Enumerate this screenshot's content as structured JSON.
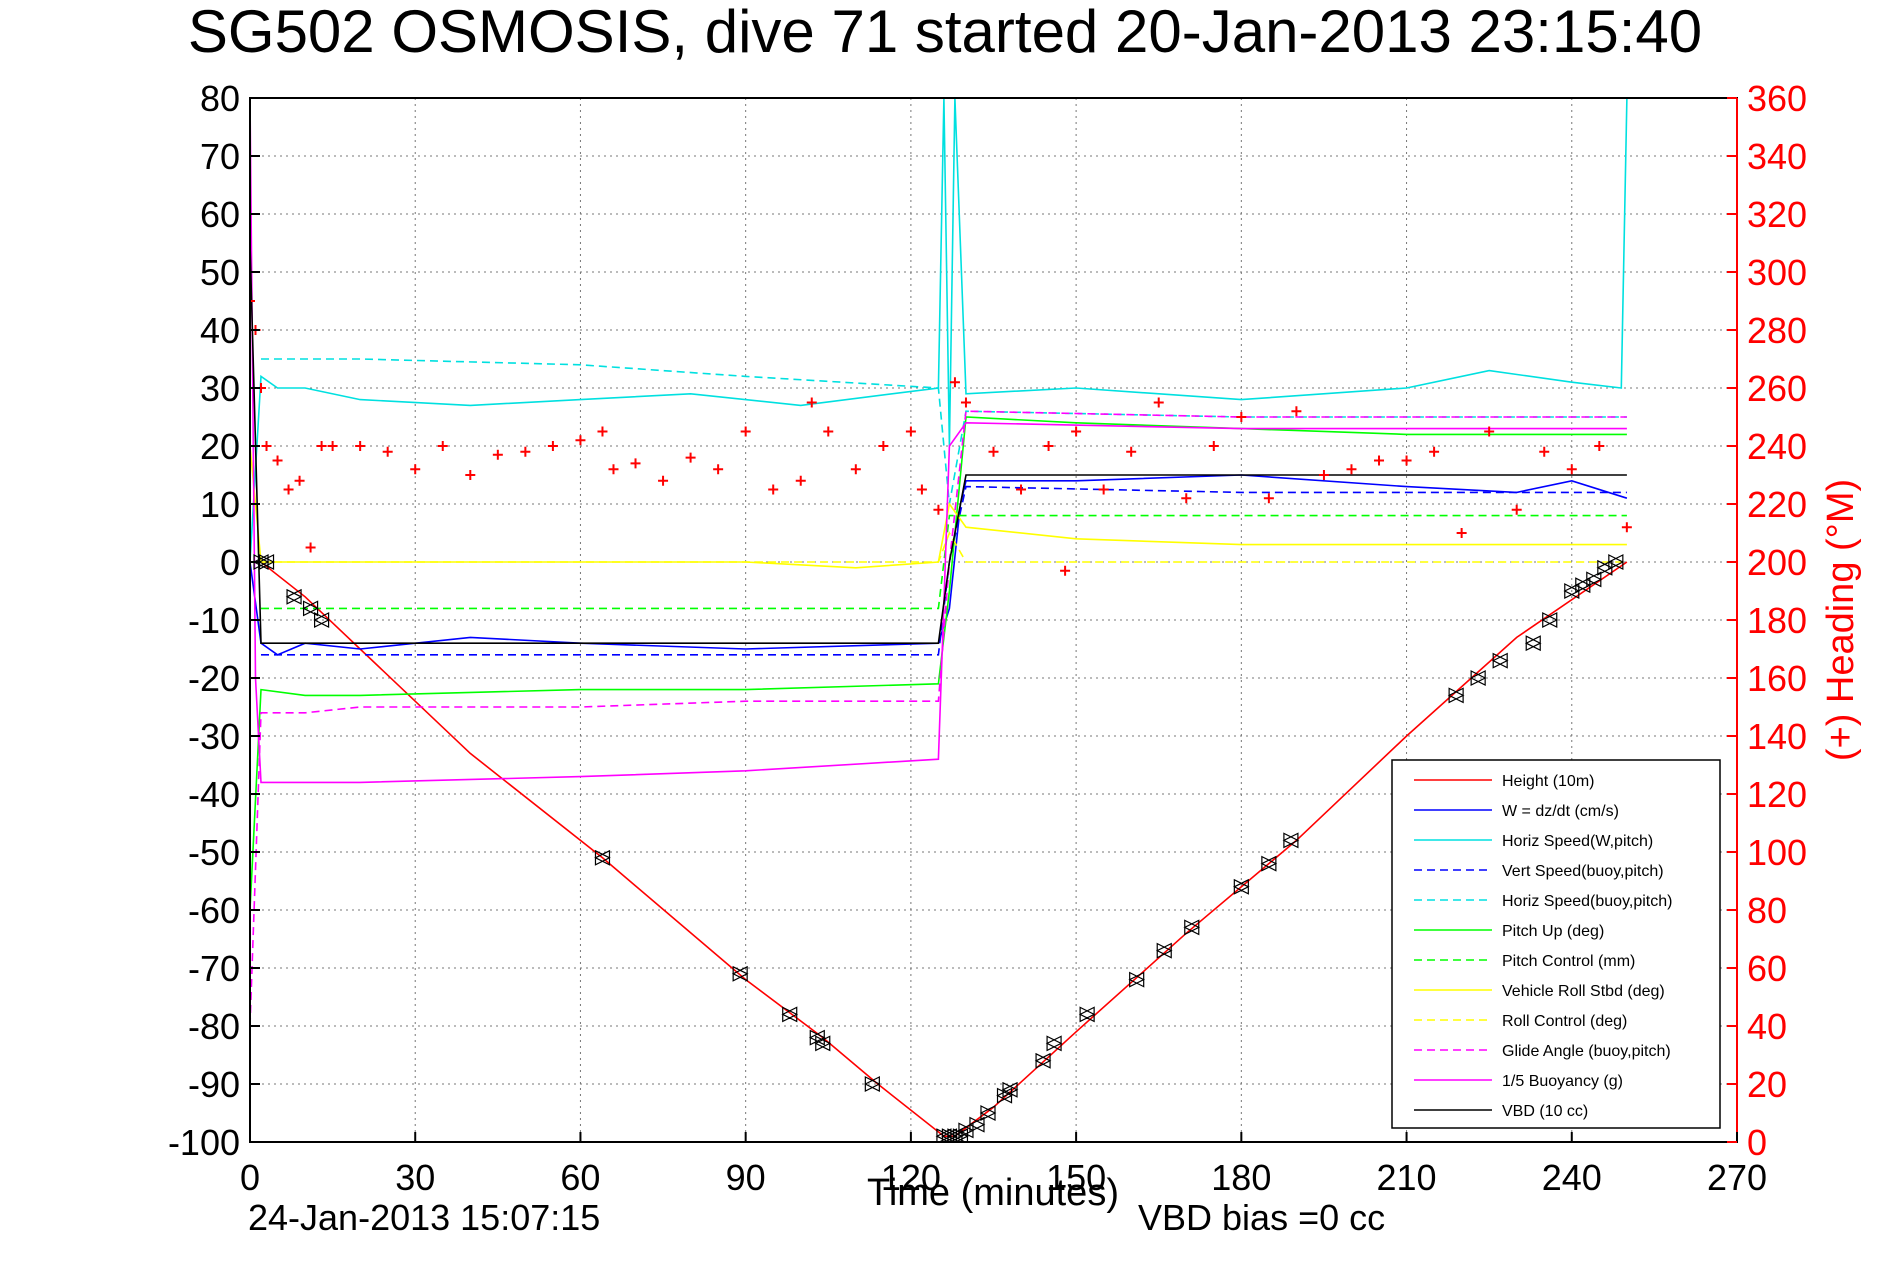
{
  "chart_data": {
    "type": "line",
    "title": "SG502 OSMOSIS, dive 71 started 20-Jan-2013 23:15:40",
    "xlabel": "Time (minutes)",
    "ylabel_right": "(+) Heading (°M)",
    "xlim": [
      0,
      270
    ],
    "ylim": [
      -100,
      80
    ],
    "ylim_right": [
      0,
      360
    ],
    "xticks": [
      "0",
      "30",
      "60",
      "90",
      "120",
      "150",
      "180",
      "210",
      "240",
      "270"
    ],
    "yticks": [
      "80",
      "70",
      "60",
      "50",
      "40",
      "30",
      "20",
      "10",
      "0",
      "-10",
      "-20",
      "-30",
      "-40",
      "-50",
      "-60",
      "-70",
      "-80",
      "-90",
      "-100"
    ],
    "yticks_right": [
      "360",
      "340",
      "320",
      "300",
      "280",
      "260",
      "240",
      "220",
      "200",
      "180",
      "160",
      "140",
      "120",
      "100",
      "80",
      "60",
      "40",
      "20",
      "0"
    ],
    "grid": true,
    "legend_position": "bottom-right",
    "footer_date": "24-Jan-2013 15:07:15",
    "footer_vbd": "VBD bias =0 cc",
    "series": [
      {
        "name": "Height (10m)",
        "color": "#ff0000",
        "style": "solid",
        "x": [
          0,
          2,
          10,
          20,
          40,
          64,
          90,
          104,
          114,
          126,
          128,
          135,
          150,
          170,
          190,
          210,
          230,
          250
        ],
        "y": [
          0,
          0,
          -6,
          -15,
          -33,
          -51,
          -72,
          -82,
          -90,
          -99,
          -99,
          -94,
          -81,
          -64,
          -48,
          -30,
          -13,
          0
        ]
      },
      {
        "name": "W = dz/dt (cm/s)",
        "color": "#0000ff",
        "style": "solid",
        "x": [
          0,
          2,
          5,
          10,
          20,
          40,
          60,
          90,
          125,
          127,
          129,
          130,
          150,
          180,
          210,
          230,
          240,
          250
        ],
        "y": [
          0,
          -14,
          -16,
          -14,
          -15,
          -13,
          -14,
          -15,
          -14,
          -8,
          10,
          14,
          14,
          15,
          13,
          12,
          14,
          11
        ]
      },
      {
        "name": "Horiz Speed(W,pitch)",
        "color": "#00e0e0",
        "style": "solid",
        "x": [
          0,
          2,
          5,
          10,
          20,
          40,
          60,
          80,
          100,
          125,
          126,
          127,
          128,
          130,
          150,
          180,
          210,
          225,
          240,
          249,
          250
        ],
        "y": [
          0,
          32,
          30,
          30,
          28,
          27,
          28,
          29,
          27,
          30,
          80,
          20,
          80,
          29,
          30,
          28,
          30,
          33,
          31,
          30,
          80
        ]
      },
      {
        "name": "Vert Speed(buoy,pitch)",
        "color": "#0000ff",
        "style": "dashed",
        "x": [
          2,
          40,
          90,
          125,
          127,
          130,
          180,
          250
        ],
        "y": [
          -16,
          -16,
          -16,
          -16,
          0,
          13,
          12,
          12
        ]
      },
      {
        "name": "Horiz Speed(buoy,pitch)",
        "color": "#00e0e0",
        "style": "dashed",
        "x": [
          2,
          20,
          60,
          90,
          125,
          127,
          130,
          180,
          250
        ],
        "y": [
          35,
          35,
          34,
          32,
          30,
          10,
          26,
          25,
          25
        ]
      },
      {
        "name": "Pitch Up (deg)",
        "color": "#00ff00",
        "style": "solid",
        "x": [
          0,
          2,
          10,
          20,
          60,
          90,
          125,
          127,
          130,
          150,
          180,
          210,
          250
        ],
        "y": [
          -60,
          -22,
          -23,
          -23,
          -22,
          -22,
          -21,
          -5,
          25,
          24,
          23,
          22,
          22
        ]
      },
      {
        "name": "Pitch Control (mm)",
        "color": "#00ff00",
        "style": "dashed",
        "x": [
          2,
          125,
          127,
          250
        ],
        "y": [
          -8,
          -8,
          8,
          8
        ]
      },
      {
        "name": "Vehicle Roll Stbd (deg)",
        "color": "#ffff00",
        "style": "solid",
        "x": [
          0,
          2,
          10,
          20,
          60,
          90,
          110,
          125,
          127,
          130,
          150,
          180,
          210,
          240,
          250
        ],
        "y": [
          20,
          0,
          0,
          0,
          0,
          0,
          -1,
          0,
          10,
          6,
          4,
          3,
          3,
          3,
          3
        ]
      },
      {
        "name": "Roll Control (deg)",
        "color": "#ffff00",
        "style": "dashed",
        "x": [
          2,
          60,
          64,
          90,
          125,
          127,
          130,
          180,
          250
        ],
        "y": [
          0,
          0,
          0,
          0,
          0,
          5,
          0,
          0,
          0
        ]
      },
      {
        "name": "Glide Angle (buoy,pitch)",
        "color": "#ff00ff",
        "style": "dashed",
        "x": [
          0,
          2,
          10,
          20,
          60,
          90,
          125,
          127,
          130,
          180,
          250
        ],
        "y": [
          -80,
          -26,
          -26,
          -25,
          -25,
          -24,
          -24,
          0,
          26,
          25,
          25
        ]
      },
      {
        "name": "1/5 Buoyancy (g)",
        "color": "#ff00ff",
        "style": "solid",
        "x": [
          0,
          1,
          2,
          20,
          60,
          90,
          125,
          127,
          130,
          180,
          250
        ],
        "y": [
          80,
          -20,
          -38,
          -38,
          -37,
          -36,
          -34,
          20,
          24,
          23,
          23
        ]
      },
      {
        "name": "VBD (10 cc)",
        "color": "#000000",
        "style": "solid",
        "x": [
          0,
          2,
          20,
          60,
          90,
          125,
          127,
          130,
          180,
          250
        ],
        "y": [
          55,
          -14,
          -14,
          -14,
          -14,
          -14,
          0,
          15,
          15,
          15
        ]
      }
    ],
    "heading_series": {
      "name": "(+) Heading",
      "color": "#ff0000",
      "marker": "+",
      "x": [
        0,
        1,
        2,
        3,
        5,
        7,
        9,
        11,
        13,
        15,
        20,
        25,
        30,
        35,
        40,
        45,
        50,
        55,
        60,
        64,
        66,
        70,
        75,
        80,
        85,
        90,
        95,
        100,
        102,
        105,
        110,
        115,
        120,
        122,
        125,
        128,
        130,
        135,
        140,
        145,
        148,
        150,
        155,
        160,
        165,
        170,
        175,
        180,
        185,
        190,
        195,
        200,
        205,
        210,
        215,
        220,
        225,
        230,
        235,
        240,
        245,
        250
      ],
      "y": [
        290,
        280,
        260,
        240,
        235,
        225,
        228,
        205,
        240,
        240,
        240,
        238,
        232,
        240,
        230,
        237,
        238,
        240,
        242,
        245,
        232,
        234,
        228,
        236,
        232,
        245,
        225,
        228,
        255,
        245,
        232,
        240,
        245,
        225,
        218,
        262,
        255,
        238,
        225,
        240,
        197,
        245,
        225,
        238,
        255,
        222,
        240,
        250,
        222,
        252,
        230,
        232,
        235,
        235,
        238,
        210,
        245,
        218,
        238,
        232,
        240,
        212
      ]
    },
    "markers": {
      "symbol": "triangle",
      "color": "#000000",
      "x": [
        2,
        3,
        8,
        11,
        13,
        64,
        89,
        98,
        103,
        104,
        113,
        126,
        127,
        128,
        129,
        130,
        132,
        134,
        137,
        138,
        144,
        146,
        152,
        161,
        166,
        171,
        180,
        185,
        189,
        219,
        223,
        227,
        233,
        236,
        240,
        242,
        244,
        246,
        248
      ],
      "y": [
        0,
        0,
        -6,
        -8,
        -10,
        -51,
        -71,
        -78,
        -82,
        -83,
        -90,
        -99,
        -99,
        -99,
        -99,
        -98,
        -97,
        -95,
        -92,
        -91,
        -86,
        -83,
        -78,
        -72,
        -67,
        -63,
        -56,
        -52,
        -48,
        -23,
        -20,
        -17,
        -14,
        -10,
        -5,
        -4,
        -3,
        -1,
        0
      ]
    }
  }
}
